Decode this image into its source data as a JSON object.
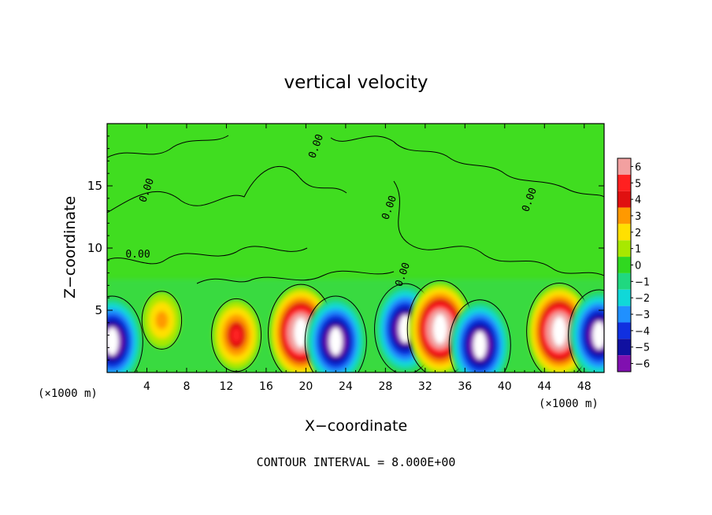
{
  "chart_data": {
    "type": "heatmap",
    "title": "vertical velocity",
    "xlabel": "X−coordinate",
    "ylabel": "Z−coordinate",
    "x_unit_left": "(×1000 m)",
    "x_unit_right": "(×1000 m)",
    "footer": "CONTOUR INTERVAL = 8.000E+00",
    "contour_label": "0.00",
    "xlim": [
      0,
      50
    ],
    "ylim": [
      0,
      20
    ],
    "x_ticks": [
      4,
      8,
      12,
      16,
      20,
      24,
      28,
      32,
      36,
      40,
      44,
      48
    ],
    "x_tick_labels": [
      "4",
      "8",
      "12",
      "16",
      "20",
      "24",
      "28",
      "32",
      "36",
      "40",
      "44",
      "48"
    ],
    "y_ticks": [
      5,
      10,
      15
    ],
    "y_tick_labels": [
      "5",
      "10",
      "15"
    ],
    "colorbar": {
      "levels": [
        6,
        5,
        4,
        3,
        2,
        1,
        0,
        -1,
        -2,
        -3,
        -4,
        -5,
        -6
      ],
      "labels": [
        "6",
        "5",
        "4",
        "3",
        "2",
        "1",
        "0",
        "−1",
        "−2",
        "−3",
        "−4",
        "−5",
        "−6"
      ],
      "colors": [
        "#f2a0a0",
        "#ff2020",
        "#e01010",
        "#ff9900",
        "#ffe000",
        "#a8e800",
        "#30d820",
        "#20d880",
        "#10d8d8",
        "#2090ff",
        "#1030e0",
        "#1010a0",
        "#8010b0"
      ]
    },
    "background_color": "#40dd20",
    "updraft_cores": [
      {
        "x": 0.5,
        "z": 2.5,
        "w": -8
      },
      {
        "x": 5.5,
        "z": 4.2,
        "w": 2.5
      },
      {
        "x": 13,
        "z": 3.0,
        "w": 5
      },
      {
        "x": 19.5,
        "z": 3.2,
        "w": 9
      },
      {
        "x": 23,
        "z": 2.5,
        "w": -8
      },
      {
        "x": 30,
        "z": 3.5,
        "w": -8
      },
      {
        "x": 33.5,
        "z": 3.5,
        "w": 9
      },
      {
        "x": 37.5,
        "z": 2.2,
        "w": -8
      },
      {
        "x": 45.5,
        "z": 3.3,
        "w": 9
      },
      {
        "x": 49.5,
        "z": 3.0,
        "w": -8
      }
    ]
  }
}
